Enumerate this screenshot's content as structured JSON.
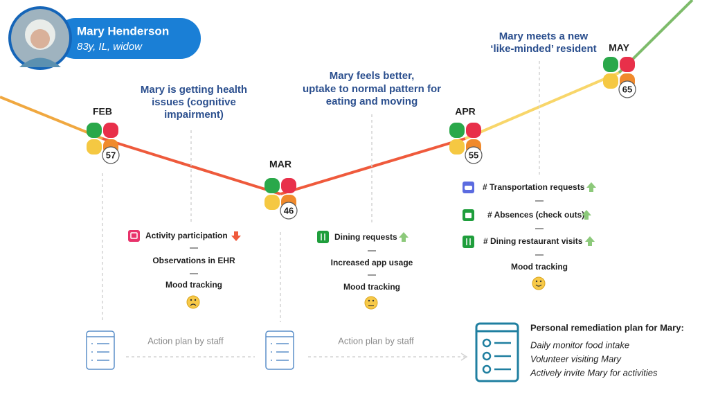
{
  "profile": {
    "name": "Mary Henderson",
    "details": "83y, IL, widow"
  },
  "milestones": [
    {
      "month": "FEB",
      "score": "57"
    },
    {
      "month": "MAR",
      "score": "46"
    },
    {
      "month": "APR",
      "score": "55"
    },
    {
      "month": "MAY",
      "score": "65"
    }
  ],
  "annotations": [
    {
      "lines": [
        "Mary is getting health",
        "issues (cognitive",
        "impairment)"
      ]
    },
    {
      "lines": [
        "Mary feels better,",
        "uptake to normal pattern for",
        "eating and moving"
      ]
    },
    {
      "lines": [
        "Mary meets a new",
        "‘like-minded’ resident"
      ]
    }
  ],
  "signals": [
    {
      "items": [
        "Activity participation",
        "Observations in EHR",
        "Mood tracking"
      ]
    },
    {
      "items": [
        "Dining requests",
        "Increased app usage",
        "Mood tracking"
      ]
    },
    {
      "items": [
        "# Transportation requests",
        "# Absences (check outs)",
        "# Dining restaurant visits",
        "Mood tracking"
      ]
    }
  ],
  "action_plans": [
    "Action plan by staff",
    "Action plan by staff"
  ],
  "remediation": {
    "title": "Personal remediation plan for Mary:",
    "items": [
      "Daily monitor food intake",
      "Volunteer visiting  Mary",
      "Actively invite Mary for activities"
    ]
  }
}
